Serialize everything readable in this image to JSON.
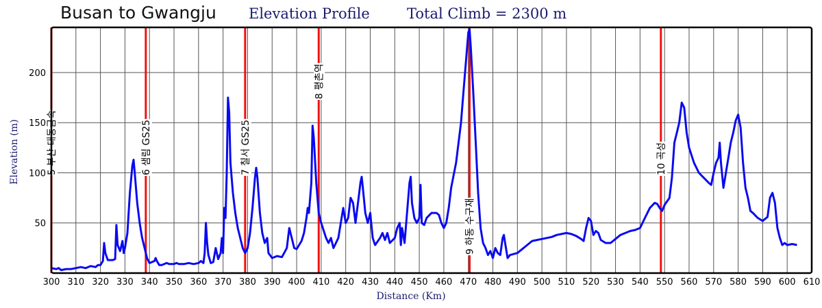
{
  "header": {
    "route": "Busan to Gwangju",
    "profile": "Elevation Profile",
    "climb": "Total Climb = 2300 m"
  },
  "colors": {
    "profile_line": "#0a0af0",
    "stop_line": "#ee1111",
    "title_text": "#1a1a6e",
    "grid": "#555555"
  },
  "chart_data": {
    "type": "line",
    "xlabel": "Distance (Km)",
    "ylabel": "Elevation (m)",
    "xlim": [
      300,
      610
    ],
    "ylim": [
      0,
      245
    ],
    "xticks": [
      300,
      310,
      320,
      330,
      340,
      350,
      360,
      370,
      380,
      390,
      400,
      410,
      420,
      430,
      440,
      450,
      460,
      470,
      480,
      490,
      500,
      510,
      520,
      530,
      540,
      550,
      560,
      570,
      580,
      590,
      600,
      610
    ],
    "yticks": [
      50,
      100,
      150,
      200
    ],
    "grid": true,
    "stops": [
      {
        "km": 300,
        "label": "5 부산 대동금속"
      },
      {
        "km": 338.5,
        "label": "6 샘림 GS25"
      },
      {
        "km": 379,
        "label": "7 칠서 GS25"
      },
      {
        "km": 409,
        "label": "8 평촌역"
      },
      {
        "km": 470.5,
        "label": "9 하동 수구재"
      },
      {
        "km": 548.5,
        "label": "10 곡성"
      }
    ],
    "series": [
      {
        "points": [
          [
            300,
            5
          ],
          [
            302,
            4
          ],
          [
            303,
            5
          ],
          [
            304,
            3
          ],
          [
            306,
            4
          ],
          [
            308,
            4
          ],
          [
            310,
            5
          ],
          [
            312,
            6
          ],
          [
            314,
            5
          ],
          [
            316,
            7
          ],
          [
            318,
            6
          ],
          [
            319,
            8
          ],
          [
            320,
            8
          ],
          [
            321,
            12
          ],
          [
            321.5,
            30
          ],
          [
            322,
            20
          ],
          [
            323,
            13
          ],
          [
            325,
            13
          ],
          [
            326,
            14
          ],
          [
            326.5,
            48
          ],
          [
            327,
            28
          ],
          [
            328,
            22
          ],
          [
            329,
            32
          ],
          [
            329.5,
            20
          ],
          [
            330,
            25
          ],
          [
            331,
            40
          ],
          [
            332,
            80
          ],
          [
            333,
            107
          ],
          [
            333.5,
            113
          ],
          [
            334,
            100
          ],
          [
            335,
            70
          ],
          [
            336,
            50
          ],
          [
            337,
            35
          ],
          [
            338,
            25
          ],
          [
            339,
            15
          ],
          [
            340,
            10
          ],
          [
            341,
            11
          ],
          [
            342,
            12
          ],
          [
            342.5,
            15
          ],
          [
            343,
            12
          ],
          [
            344,
            8
          ],
          [
            345,
            8
          ],
          [
            346,
            9
          ],
          [
            347,
            10
          ],
          [
            348,
            9
          ],
          [
            350,
            9
          ],
          [
            351,
            10
          ],
          [
            352,
            9
          ],
          [
            354,
            9
          ],
          [
            356,
            10
          ],
          [
            358,
            9
          ],
          [
            360,
            10
          ],
          [
            361,
            12
          ],
          [
            362,
            10
          ],
          [
            362.5,
            20
          ],
          [
            363,
            50
          ],
          [
            363.5,
            30
          ],
          [
            364,
            18
          ],
          [
            365,
            10
          ],
          [
            366,
            11
          ],
          [
            367,
            25
          ],
          [
            368,
            14
          ],
          [
            369,
            20
          ],
          [
            369.5,
            35
          ],
          [
            370,
            20
          ],
          [
            370.5,
            65
          ],
          [
            371,
            55
          ],
          [
            371.5,
            100
          ],
          [
            372,
            175
          ],
          [
            372.5,
            160
          ],
          [
            373,
            110
          ],
          [
            374,
            80
          ],
          [
            375,
            60
          ],
          [
            376,
            45
          ],
          [
            377,
            35
          ],
          [
            378,
            25
          ],
          [
            379,
            20
          ],
          [
            380,
            25
          ],
          [
            381,
            40
          ],
          [
            382,
            65
          ],
          [
            383,
            95
          ],
          [
            383.5,
            105
          ],
          [
            384,
            95
          ],
          [
            385,
            60
          ],
          [
            386,
            40
          ],
          [
            387,
            30
          ],
          [
            388,
            35
          ],
          [
            388.5,
            20
          ],
          [
            390,
            15
          ],
          [
            392,
            17
          ],
          [
            394,
            16
          ],
          [
            396,
            25
          ],
          [
            397,
            45
          ],
          [
            398,
            35
          ],
          [
            399,
            25
          ],
          [
            400,
            24
          ],
          [
            401,
            28
          ],
          [
            402,
            32
          ],
          [
            403,
            40
          ],
          [
            404,
            55
          ],
          [
            404.5,
            65
          ],
          [
            405,
            60
          ],
          [
            406,
            90
          ],
          [
            406.5,
            147
          ],
          [
            407,
            135
          ],
          [
            408,
            90
          ],
          [
            409,
            60
          ],
          [
            410,
            50
          ],
          [
            412,
            35
          ],
          [
            413,
            30
          ],
          [
            414,
            35
          ],
          [
            415,
            25
          ],
          [
            416,
            30
          ],
          [
            417,
            35
          ],
          [
            418,
            50
          ],
          [
            419,
            65
          ],
          [
            420,
            50
          ],
          [
            421,
            55
          ],
          [
            422,
            75
          ],
          [
            423,
            70
          ],
          [
            424,
            50
          ],
          [
            425,
            70
          ],
          [
            426,
            90
          ],
          [
            426.5,
            96
          ],
          [
            427,
            85
          ],
          [
            428,
            60
          ],
          [
            429,
            50
          ],
          [
            430,
            60
          ],
          [
            431,
            35
          ],
          [
            432,
            28
          ],
          [
            434,
            35
          ],
          [
            435,
            40
          ],
          [
            436,
            33
          ],
          [
            437,
            40
          ],
          [
            438,
            30
          ],
          [
            440,
            35
          ],
          [
            441,
            45
          ],
          [
            442,
            50
          ],
          [
            442.5,
            28
          ],
          [
            443,
            45
          ],
          [
            444,
            30
          ],
          [
            445,
            60
          ],
          [
            446,
            90
          ],
          [
            446.5,
            96
          ],
          [
            447,
            70
          ],
          [
            448,
            55
          ],
          [
            449,
            50
          ],
          [
            450,
            55
          ],
          [
            450.5,
            88
          ],
          [
            451,
            50
          ],
          [
            452,
            48
          ],
          [
            453,
            55
          ],
          [
            455,
            60
          ],
          [
            457,
            60
          ],
          [
            458,
            58
          ],
          [
            459,
            50
          ],
          [
            460,
            45
          ],
          [
            461,
            50
          ],
          [
            462,
            65
          ],
          [
            463,
            85
          ],
          [
            465,
            110
          ],
          [
            467,
            150
          ],
          [
            468,
            180
          ],
          [
            469,
            210
          ],
          [
            470,
            240
          ],
          [
            470.5,
            243
          ],
          [
            471,
            225
          ],
          [
            472,
            180
          ],
          [
            473,
            130
          ],
          [
            474,
            80
          ],
          [
            475,
            45
          ],
          [
            476,
            30
          ],
          [
            477,
            25
          ],
          [
            478,
            18
          ],
          [
            479,
            22
          ],
          [
            480,
            15
          ],
          [
            481,
            25
          ],
          [
            482,
            20
          ],
          [
            483,
            18
          ],
          [
            484,
            35
          ],
          [
            484.5,
            38
          ],
          [
            485,
            30
          ],
          [
            486,
            15
          ],
          [
            487,
            18
          ],
          [
            490,
            20
          ],
          [
            492,
            24
          ],
          [
            494,
            28
          ],
          [
            496,
            32
          ],
          [
            498,
            33
          ],
          [
            500,
            34
          ],
          [
            502,
            35
          ],
          [
            504,
            36
          ],
          [
            506,
            38
          ],
          [
            508,
            39
          ],
          [
            510,
            40
          ],
          [
            512,
            39
          ],
          [
            514,
            37
          ],
          [
            516,
            34
          ],
          [
            517,
            32
          ],
          [
            518,
            45
          ],
          [
            519,
            55
          ],
          [
            520,
            52
          ],
          [
            521,
            38
          ],
          [
            522,
            42
          ],
          [
            523,
            40
          ],
          [
            524,
            33
          ],
          [
            526,
            30
          ],
          [
            528,
            30
          ],
          [
            530,
            34
          ],
          [
            532,
            38
          ],
          [
            534,
            40
          ],
          [
            536,
            42
          ],
          [
            538,
            43
          ],
          [
            540,
            45
          ],
          [
            542,
            55
          ],
          [
            544,
            65
          ],
          [
            546,
            70
          ],
          [
            547,
            69
          ],
          [
            548,
            65
          ],
          [
            549,
            62
          ],
          [
            550,
            68
          ],
          [
            552,
            75
          ],
          [
            553,
            95
          ],
          [
            554,
            130
          ],
          [
            555,
            140
          ],
          [
            556,
            150
          ],
          [
            557,
            170
          ],
          [
            558,
            165
          ],
          [
            559,
            140
          ],
          [
            560,
            125
          ],
          [
            562,
            110
          ],
          [
            564,
            100
          ],
          [
            566,
            95
          ],
          [
            568,
            90
          ],
          [
            569,
            88
          ],
          [
            570,
            100
          ],
          [
            571,
            110
          ],
          [
            572,
            115
          ],
          [
            572.5,
            130
          ],
          [
            573,
            110
          ],
          [
            574,
            85
          ],
          [
            575,
            100
          ],
          [
            576,
            115
          ],
          [
            577,
            130
          ],
          [
            578,
            140
          ],
          [
            579,
            152
          ],
          [
            580,
            158
          ],
          [
            581,
            145
          ],
          [
            582,
            110
          ],
          [
            583,
            85
          ],
          [
            584,
            75
          ],
          [
            585,
            62
          ],
          [
            586,
            60
          ],
          [
            588,
            55
          ],
          [
            590,
            52
          ],
          [
            592,
            56
          ],
          [
            593,
            75
          ],
          [
            594,
            80
          ],
          [
            595,
            70
          ],
          [
            596,
            45
          ],
          [
            597,
            35
          ],
          [
            598,
            28
          ],
          [
            599,
            30
          ],
          [
            600,
            28
          ],
          [
            602,
            29
          ],
          [
            604,
            28
          ]
        ]
      }
    ]
  }
}
